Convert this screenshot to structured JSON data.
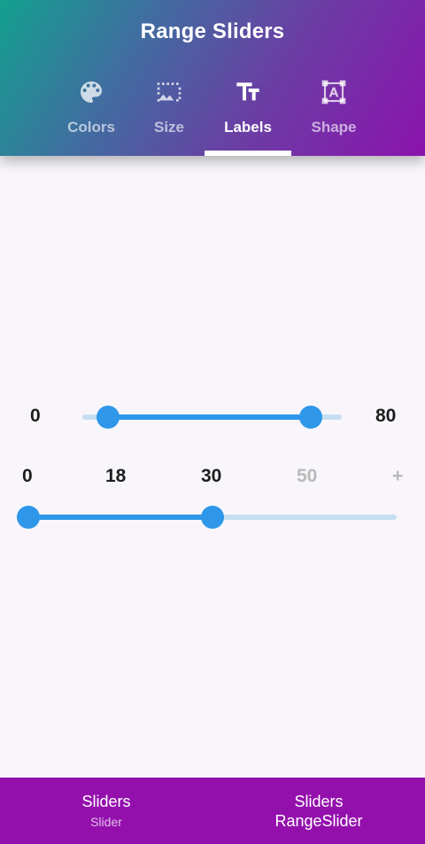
{
  "header": {
    "title": "Range Sliders",
    "tabs": [
      {
        "label": "Colors",
        "icon": "palette-icon",
        "active": false
      },
      {
        "label": "Size",
        "icon": "photo-size-select-icon",
        "active": false
      },
      {
        "label": "Labels",
        "icon": "text-fields-icon",
        "active": true
      },
      {
        "label": "Shape",
        "icon": "shape-text-icon",
        "active": false
      }
    ]
  },
  "slider_one": {
    "min_label": "0",
    "max_label": "80",
    "min": 0,
    "max": 80,
    "start_value": 0.1,
    "end_value": 0.88
  },
  "slider_two": {
    "tick_labels": [
      "0",
      "18",
      "30",
      "50",
      "+"
    ],
    "start_label": "0",
    "end_label": "30"
  },
  "bottom_nav": {
    "items": [
      {
        "title": "Sliders",
        "subtitle": "Slider"
      },
      {
        "title": "Sliders",
        "subtitle": "RangeSlider"
      }
    ]
  },
  "colors": {
    "accent": "#2e97ea",
    "track_inactive": "#c5dff2",
    "nav_background": "#9410ad"
  }
}
